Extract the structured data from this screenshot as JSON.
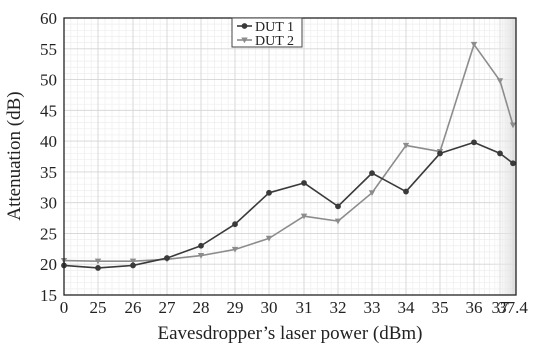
{
  "chart_data": {
    "type": "line",
    "xlabel": "Eavesdropper’s laser power (dBm)",
    "ylabel": "Attenuation (dB)",
    "x_tick_labels": [
      "0",
      "25",
      "26",
      "27",
      "28",
      "29",
      "30",
      "31",
      "32",
      "33",
      "34",
      "35",
      "36",
      "37",
      "37.4"
    ],
    "y_ticks": [
      15,
      20,
      25,
      30,
      35,
      40,
      45,
      50,
      55,
      60
    ],
    "ylim": [
      15,
      60
    ],
    "x": [
      "0",
      "25",
      "26",
      "27",
      "28",
      "29",
      "30",
      "31",
      "32",
      "33",
      "34",
      "35",
      "36",
      "37",
      "37.4"
    ],
    "grid": true,
    "legend": "top-center",
    "series": [
      {
        "name": "DUT 1",
        "color": "#3a3a3a",
        "marker": "circle",
        "values": [
          19.8,
          19.4,
          19.8,
          21.0,
          23.0,
          26.5,
          31.6,
          33.2,
          29.4,
          34.8,
          31.8,
          38.0,
          39.8,
          38.0,
          36.4
        ]
      },
      {
        "name": "DUT 2",
        "color": "#8c8c8c",
        "marker": "triangle-down",
        "values": [
          20.6,
          20.5,
          20.5,
          20.8,
          21.4,
          22.4,
          24.2,
          27.8,
          27.0,
          31.6,
          39.3,
          38.3,
          55.7,
          49.8,
          42.6
        ]
      }
    ]
  }
}
